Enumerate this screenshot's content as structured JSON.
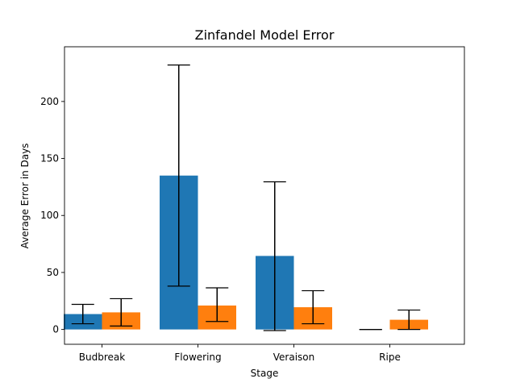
{
  "chart_data": {
    "type": "bar",
    "title": "Zinfandel Model Error",
    "xlabel": "Stage",
    "ylabel": "Average Error in Days",
    "categories": [
      "Budbreak",
      "Flowering",
      "Veraison",
      "Ripe"
    ],
    "ylim": [
      -13,
      248
    ],
    "yticks": [
      0,
      50,
      100,
      150,
      200
    ],
    "grid": false,
    "legend": "none",
    "series": [
      {
        "color": "#1f77b4",
        "values": [
          13.5,
          135,
          64.5,
          0
        ],
        "error_low": [
          5,
          38,
          -1,
          0
        ],
        "error_high": [
          22,
          232,
          129.5,
          0
        ]
      },
      {
        "color": "#ff7f0e",
        "values": [
          15,
          21,
          19.5,
          8.5
        ],
        "error_low": [
          3,
          7,
          5,
          0
        ],
        "error_high": [
          27,
          36.5,
          34,
          17
        ]
      }
    ]
  }
}
